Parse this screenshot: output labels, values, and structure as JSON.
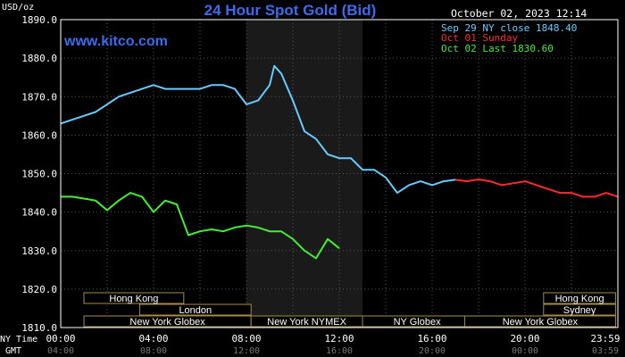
{
  "chart_data": {
    "type": "line",
    "title": "24 Hour Spot Gold (Bid)",
    "watermark": "www.kitco.com",
    "timestamp": "October 02, 2023 12:14",
    "ylabel": "USD/oz",
    "ylim": [
      1810,
      1890
    ],
    "yticks": [
      "1810.0",
      "1820.0",
      "1830.0",
      "1840.0",
      "1850.0",
      "1860.0",
      "1870.0",
      "1880.0",
      "1890.0"
    ],
    "xlim": [
      0,
      24
    ],
    "xticks_ny": [
      "00:00",
      "04:00",
      "08:00",
      "12:00",
      "16:00",
      "20:00",
      "23:59"
    ],
    "xticks_gmt": [
      "04:00",
      "08:00",
      "12:00",
      "16:00",
      "20:00",
      "00:00",
      "03:59"
    ],
    "x_row_labels": {
      "ny": "NY Time",
      "gmt": "GMT"
    },
    "grid": true,
    "legend": [
      "Sep 29 NY close 1848.40",
      "Oct 01 Sunday",
      "Oct 02 Last 1830.60"
    ],
    "colors": {
      "series1": "#66ccff",
      "series2": "#ff2a2a",
      "series3": "#44ee33",
      "axis": "#ffffff",
      "grid": "#555555",
      "title": "#3b6cf0",
      "watermark": "#3b6cf0",
      "session_border": "#a58c4a",
      "shade": "#1a1a1a"
    },
    "shaded_region": [
      8,
      13
    ],
    "sessions": {
      "row1": [
        {
          "label": "Hong Kong",
          "start": 1,
          "end": 5.3
        },
        {
          "label": "Hong Kong",
          "start": 20.8,
          "end": 23.9
        }
      ],
      "row2": [
        {
          "label": "London",
          "start": 3.4,
          "end": 8.2
        },
        {
          "label": "Sydney",
          "start": 20.8,
          "end": 23.9
        }
      ],
      "row3": [
        {
          "label": "New York Globex",
          "start": 1,
          "end": 8.2
        },
        {
          "label": "New York NYMEX",
          "start": 8.2,
          "end": 13
        },
        {
          "label": "NY Globex",
          "start": 13,
          "end": 17.7
        },
        {
          "label": "New York Globex",
          "start": 17.4,
          "end": 23.9
        }
      ]
    },
    "series": [
      {
        "x": [
          0,
          0.5,
          1,
          1.5,
          2,
          2.5,
          3,
          3.5,
          4,
          4.5,
          5,
          5.5,
          6,
          6.5,
          7,
          7.5,
          8,
          8.5,
          9,
          9.2,
          9.5,
          10,
          10.5,
          11,
          11.5,
          12,
          12.5,
          13,
          13.5,
          14,
          14.5,
          15,
          15.5,
          16,
          16.5,
          17
        ],
        "values": [
          1863,
          1864,
          1865,
          1866,
          1868,
          1870,
          1871,
          1872,
          1873,
          1872,
          1872,
          1872,
          1872,
          1873,
          1873,
          1872,
          1868,
          1869,
          1873,
          1878,
          1876,
          1869,
          1861,
          1859,
          1855,
          1854,
          1854,
          1851,
          1851,
          1849,
          1845,
          1847,
          1848,
          1847,
          1848,
          1848.4
        ]
      },
      {
        "x": [
          17,
          17.5,
          18,
          18.5,
          19,
          19.5,
          20,
          20.5,
          21,
          21.5,
          22,
          22.5,
          23,
          23.5,
          24
        ],
        "values": [
          1848.4,
          1848,
          1848.5,
          1848,
          1847,
          1847.5,
          1848,
          1847,
          1846,
          1845,
          1845,
          1844,
          1844,
          1845,
          1844
        ]
      },
      {
        "x": [
          0,
          0.5,
          1,
          1.5,
          2,
          2.5,
          3,
          3.5,
          4,
          4.5,
          5,
          5.5,
          6,
          6.5,
          7,
          7.5,
          8,
          8.5,
          9,
          9.5,
          10,
          10.5,
          11,
          11.5,
          12
        ],
        "values": [
          1844,
          1844,
          1843.5,
          1843,
          1840.5,
          1843,
          1845,
          1844,
          1840,
          1843,
          1842,
          1834,
          1835,
          1835.5,
          1835,
          1836,
          1836.5,
          1836,
          1835,
          1835,
          1833,
          1830,
          1828,
          1833,
          1830.6
        ]
      }
    ]
  }
}
